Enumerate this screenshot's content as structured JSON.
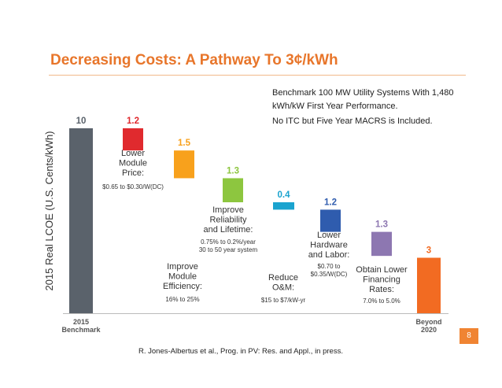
{
  "slide": {
    "title": "Decreasing Costs: A Pathway To 3¢/kWh",
    "note_line1": "Benchmark 100 MW Utility Systems With 1,480",
    "note_line2": "kWh/kW First Year Performance.",
    "note_line3": "No ITC but Five Year MACRS is Included.",
    "citation": "R. Jones-Albertus et al., Prog. in PV: Res. and Appl., in press.",
    "page_number": "8"
  },
  "chart_data": {
    "type": "bar",
    "subtype": "waterfall",
    "ylabel": "2015 Real LCOE (U.S. Cents/kWh)",
    "ylim": [
      0,
      10
    ],
    "grid": false,
    "legend": "none",
    "bars": [
      {
        "value": 10,
        "label": "10",
        "kind": "total",
        "base": 0,
        "color": "#5a626b",
        "category": [
          "2015",
          "Benchmark"
        ]
      },
      {
        "value": 1.2,
        "label": "1.2",
        "kind": "step",
        "base": 8.8,
        "color": "#e02a2e",
        "caption": [
          "Lower",
          "Module",
          "Price:"
        ],
        "detail": [
          "$0.65 to $0.30/W(DC)"
        ]
      },
      {
        "value": 1.5,
        "label": "1.5",
        "kind": "step",
        "base": 7.3,
        "color": "#f8a11c",
        "caption": [
          "Improve",
          "Module",
          "Efficiency:"
        ],
        "detail": [
          "16% to 25%"
        ]
      },
      {
        "value": 1.3,
        "label": "1.3",
        "kind": "step",
        "base": 6.0,
        "color": "#8dc63f",
        "caption": [
          "Improve",
          "Reliability",
          "and Lifetime:"
        ],
        "detail": [
          "0.75% to 0.2%/year",
          "30 to 50 year system"
        ]
      },
      {
        "value": 0.4,
        "label": "0.4",
        "kind": "step",
        "base": 5.6,
        "color": "#1aa3cf",
        "caption": [
          "Reduce",
          "O&M:"
        ],
        "detail": [
          "$15 to $7/kW-yr"
        ]
      },
      {
        "value": 1.2,
        "label": "1.2",
        "kind": "step",
        "base": 4.4,
        "color": "#2f5cae",
        "caption": [
          "Lower",
          "Hardware",
          "and Labor:"
        ],
        "detail": [
          "$0.70 to",
          "$0.35/W(DC)"
        ]
      },
      {
        "value": 1.3,
        "label": "1.3",
        "kind": "step",
        "base": 3.1,
        "color": "#8d77b1",
        "caption": [
          "Obtain Lower",
          "Financing",
          "Rates:"
        ],
        "detail": [
          "7.0% to 5.0%"
        ]
      },
      {
        "value": 3,
        "label": "3",
        "kind": "total",
        "base": 0,
        "color": "#f26b22",
        "category": [
          "Beyond",
          "2020"
        ]
      }
    ]
  }
}
